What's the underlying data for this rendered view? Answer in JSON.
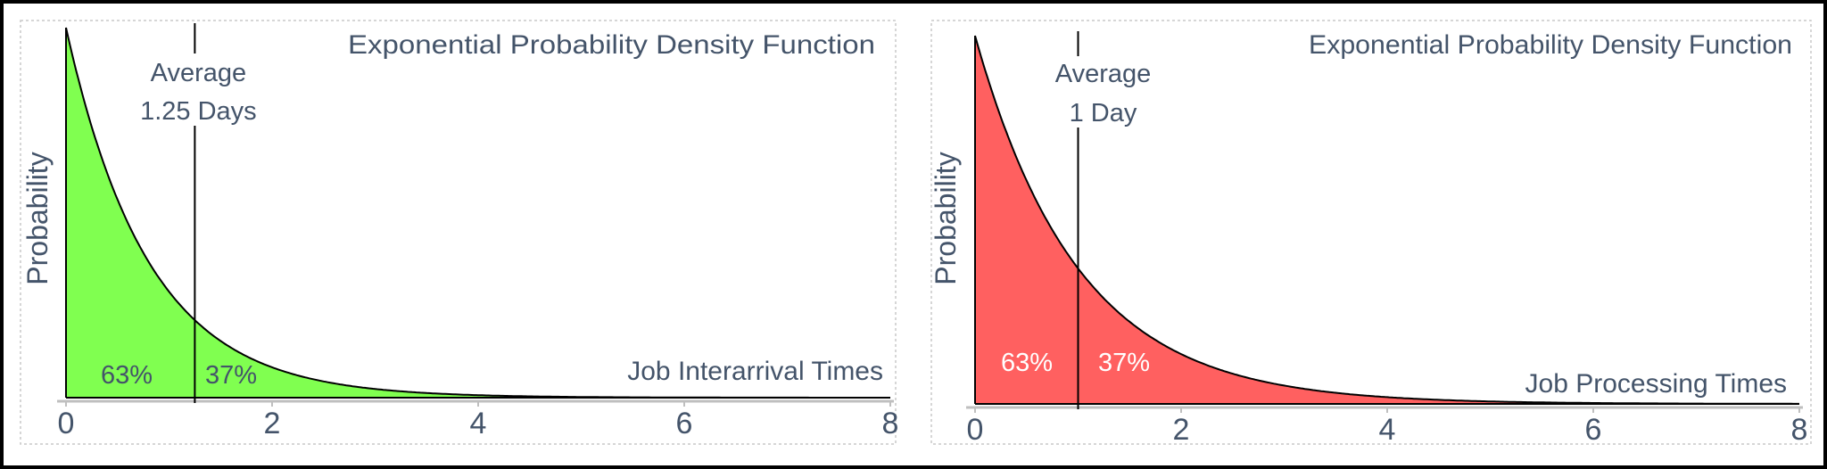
{
  "colors": {
    "text": "#44546a",
    "frame": "#000000",
    "axis": "#bfbfbf"
  },
  "chart_data": [
    {
      "type": "area",
      "title": "Exponential Probability Density Function",
      "xlabel": "Job Interarrival Times",
      "ylabel": "Probability",
      "xlim": [
        0,
        8
      ],
      "x_ticks": [
        "0",
        "2",
        "4",
        "6",
        "8"
      ],
      "distribution": "exponential",
      "curve_decay_rate": 1.25,
      "average_value": 1.25,
      "average_label": [
        "Average",
        "1.25 Days"
      ],
      "area_labels": [
        "63%",
        "37%"
      ],
      "fill_color": "#80ff50",
      "area_label_color": "#44546a",
      "grid": false,
      "legend": "none"
    },
    {
      "type": "area",
      "title": "Exponential Probability Density Function",
      "xlabel": "Job Processing Times",
      "ylabel": "Probability",
      "xlim": [
        0,
        8
      ],
      "x_ticks": [
        "0",
        "2",
        "4",
        "6",
        "8"
      ],
      "distribution": "exponential",
      "curve_decay_rate": 1,
      "average_value": 1,
      "average_label": [
        "Average",
        "1 Day"
      ],
      "area_labels": [
        "63%",
        "37%"
      ],
      "fill_color": "#ff6060",
      "area_label_color": "#ffffff",
      "grid": false,
      "legend": "none"
    }
  ]
}
